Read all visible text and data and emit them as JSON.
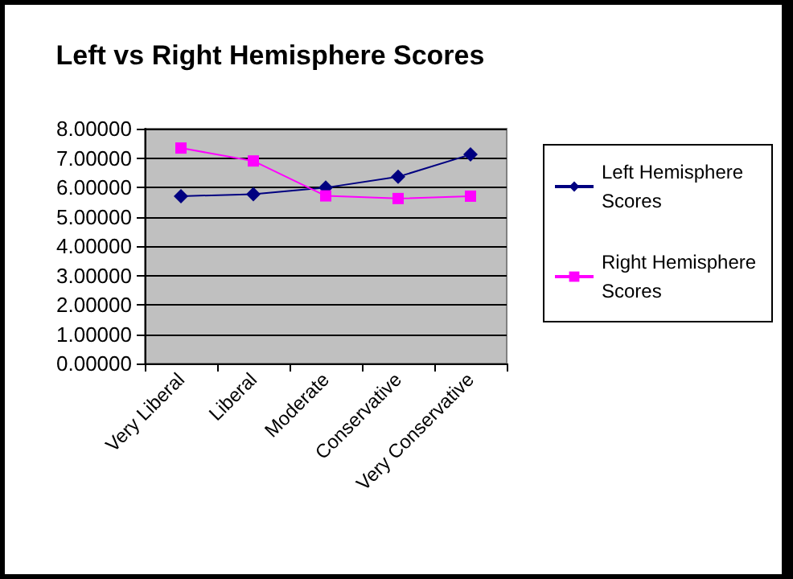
{
  "chart_data": {
    "type": "line",
    "title": "Left vs Right Hemisphere Scores",
    "categories": [
      "Very Liberal",
      "Liberal",
      "Moderate",
      "Conservative",
      "Very Conservative"
    ],
    "series": [
      {
        "name": "Left Hemisphere Scores",
        "color": "#000080",
        "marker": "diamond",
        "values": [
          5.7,
          5.77,
          5.99,
          6.36,
          7.12
        ]
      },
      {
        "name": "Right Hemisphere Scores",
        "color": "#ff00ff",
        "marker": "square",
        "values": [
          7.34,
          6.9,
          5.71,
          5.62,
          5.7
        ]
      }
    ],
    "ylim": [
      0,
      8
    ],
    "yticks": [
      {
        "value": 0,
        "label": "0.00000"
      },
      {
        "value": 1,
        "label": "1.00000"
      },
      {
        "value": 2,
        "label": "2.00000"
      },
      {
        "value": 3,
        "label": "3.00000"
      },
      {
        "value": 4,
        "label": "4.00000"
      },
      {
        "value": 5,
        "label": "5.00000"
      },
      {
        "value": 6,
        "label": "6.00000"
      },
      {
        "value": 7,
        "label": "7.00000"
      },
      {
        "value": 8,
        "label": "8.00000"
      }
    ],
    "grid": "y",
    "legend": "right"
  }
}
